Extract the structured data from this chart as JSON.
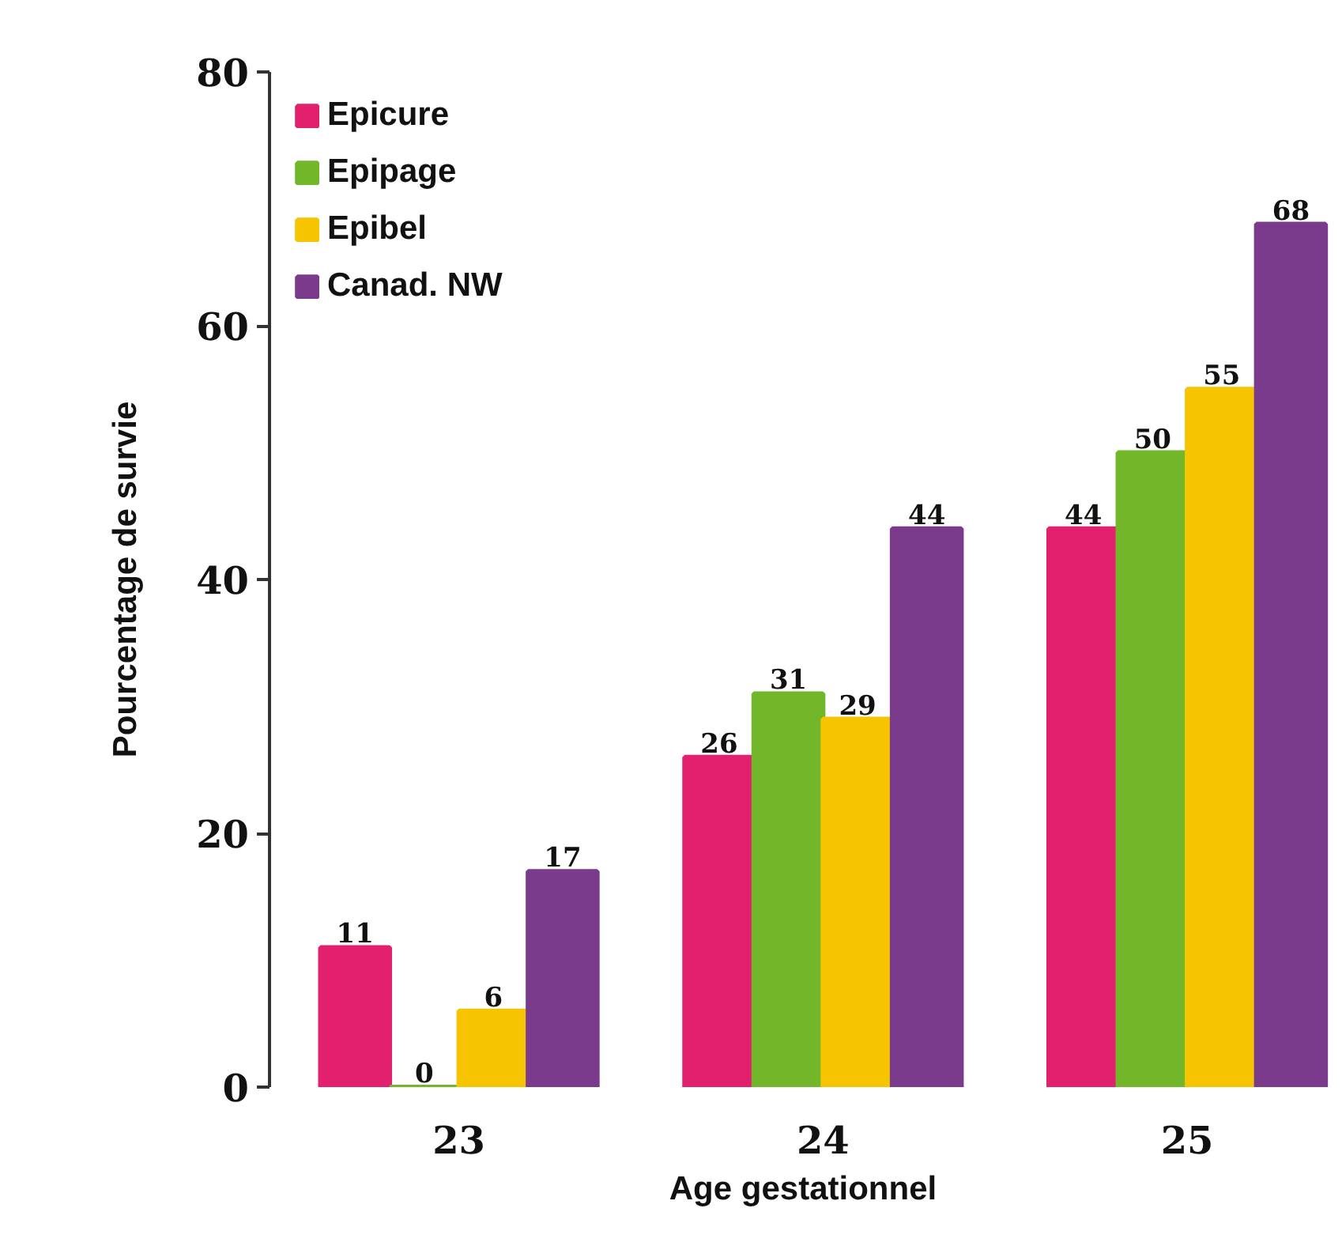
{
  "chart_data": {
    "type": "bar",
    "xlabel": "Age gestationnel",
    "ylabel": "Pourcentage de survie",
    "categories": [
      "23",
      "24",
      "25"
    ],
    "series": [
      {
        "name": "Epicure",
        "color": "#e3206e",
        "values": [
          11,
          26,
          44
        ]
      },
      {
        "name": "Epipage",
        "color": "#72b72a",
        "values": [
          0,
          31,
          50
        ]
      },
      {
        "name": "Epibel",
        "color": "#f6c400",
        "values": [
          6,
          29,
          55
        ]
      },
      {
        "name": "Canad. NW",
        "color": "#7b3b8c",
        "values": [
          17,
          44,
          68
        ]
      }
    ],
    "ylim": [
      0,
      80
    ],
    "yticks": [
      0,
      20,
      40,
      60,
      80
    ],
    "data_labels": true,
    "grid": false,
    "legend": "top left"
  }
}
